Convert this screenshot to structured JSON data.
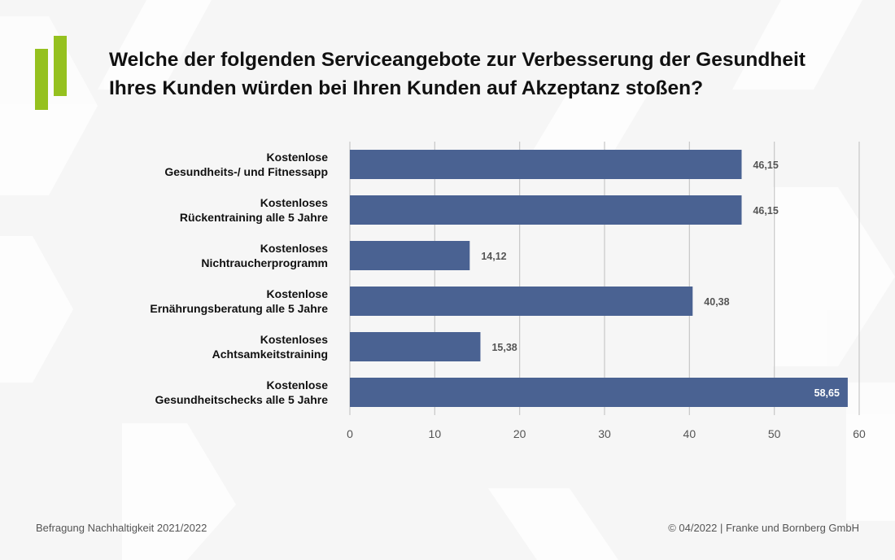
{
  "title_lines": [
    "Welche der folgenden Serviceangebote zur Verbesserung der Gesundheit",
    "Ihres Kunden würden bei Ihren Kunden auf Akzeptanz stoßen?"
  ],
  "footer": {
    "left": "Befragung Nachhaltigkeit 2021/2022",
    "right": "© 04/2022 | Franke und Bornberg GmbH"
  },
  "colors": {
    "bar": "#4a6292",
    "logo": "#95c11f",
    "grid": "#c7c7c7"
  },
  "chart_data": {
    "type": "bar",
    "orientation": "horizontal",
    "categories": [
      [
        "Kostenlose",
        "Gesundheits-/ und Fitnessapp"
      ],
      [
        "Kostenloses",
        "Rückentraining alle 5 Jahre"
      ],
      [
        "Kostenloses",
        "Nichtraucherprogramm"
      ],
      [
        "Kostenlose",
        "Ernährungsberatung alle 5 Jahre"
      ],
      [
        "Kostenloses",
        "Achtsamkeitstraining"
      ],
      [
        "Kostenlose",
        "Gesundheitschecks alle 5 Jahre"
      ]
    ],
    "values": [
      46.15,
      46.15,
      14.12,
      40.38,
      15.38,
      58.65
    ],
    "value_labels": [
      "46,15",
      "46,15",
      "14,12",
      "40,38",
      "15,38",
      "58,65"
    ],
    "xlim": [
      0,
      60
    ],
    "ticks": [
      0,
      10,
      20,
      30,
      40,
      50,
      60
    ],
    "grid": true,
    "legend": false
  }
}
